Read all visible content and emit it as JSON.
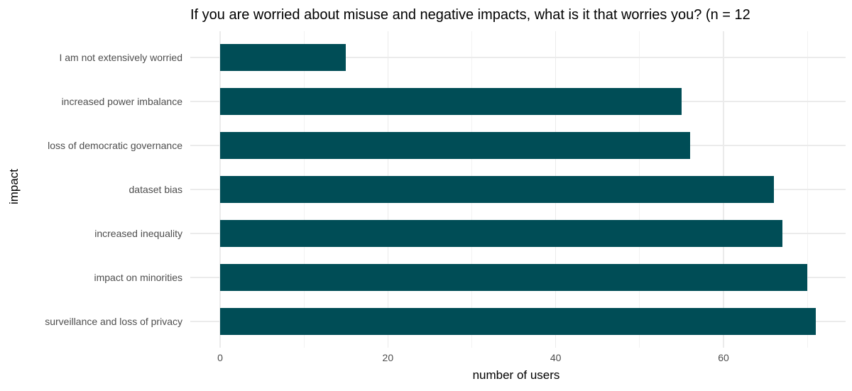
{
  "chart_data": {
    "type": "bar",
    "orientation": "horizontal",
    "title": "If you are worried about misuse and negative impacts, what is it that worries you? (n = 12",
    "xlabel": "number of users",
    "ylabel": "impact",
    "categories": [
      "I am not extensively worried",
      "increased power imbalance",
      "loss of democratic governance",
      "dataset bias",
      "increased inequality",
      "impact on minorities",
      "surveillance and loss of privacy"
    ],
    "values": [
      15,
      55,
      56,
      66,
      67,
      70,
      71
    ],
    "x_major_ticks": [
      0,
      20,
      40,
      60
    ],
    "x_minor_ticks": [
      10,
      30,
      50,
      70
    ],
    "xlim": [
      0,
      74.6
    ],
    "grid": "vertical major+minor, horizontal major through category centers",
    "legend": "none",
    "bar_color": "#004D56",
    "gridline_major_color": "#EBEBEB",
    "gridline_minor_color": "#F2F2F2",
    "tick_label_color": "#4D4D4D",
    "title_color": "#000000",
    "background": "#FFFFFF"
  }
}
